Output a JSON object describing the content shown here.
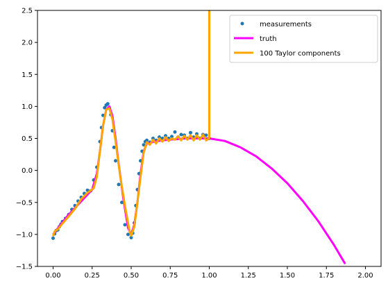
{
  "chart_data": {
    "type": "scatter",
    "title": "",
    "xlabel": "",
    "ylabel": "",
    "xlim": [
      -0.1,
      2.1
    ],
    "ylim": [
      -1.5,
      2.5
    ],
    "xticks": [
      "0.00",
      "0.25",
      "0.50",
      "0.75",
      "1.00",
      "1.25",
      "1.50",
      "1.75",
      "2.00"
    ],
    "yticks": [
      "−1.5",
      "−1.0",
      "−0.5",
      "0.0",
      "0.5",
      "1.0",
      "1.5",
      "2.0",
      "2.5"
    ],
    "grid": false,
    "legend_position": "upper right",
    "legend": [
      {
        "label": "measurements",
        "marker": "dot",
        "color": "#1f77b4"
      },
      {
        "label": "truth",
        "marker": "line",
        "color": "#ff00ff"
      },
      {
        "label": "100 Taylor components",
        "marker": "line",
        "color": "#ffa500"
      }
    ],
    "series": [
      {
        "name": "measurements",
        "kind": "scatter",
        "color": "#1f77b4",
        "x": [
          0.0,
          0.01,
          0.02,
          0.03,
          0.04,
          0.05,
          0.06,
          0.08,
          0.1,
          0.12,
          0.14,
          0.16,
          0.18,
          0.2,
          0.22,
          0.24,
          0.26,
          0.28,
          0.3,
          0.31,
          0.32,
          0.33,
          0.34,
          0.35,
          0.36,
          0.37,
          0.38,
          0.39,
          0.4,
          0.42,
          0.44,
          0.46,
          0.48,
          0.5,
          0.51,
          0.52,
          0.53,
          0.54,
          0.55,
          0.56,
          0.57,
          0.58,
          0.59,
          0.6,
          0.62,
          0.64,
          0.66,
          0.68,
          0.7,
          0.72,
          0.74,
          0.76,
          0.78,
          0.8,
          0.82,
          0.84,
          0.86,
          0.88,
          0.9,
          0.92,
          0.94,
          0.96,
          0.98,
          1.0
        ],
        "y": [
          -1.06,
          -0.99,
          -0.94,
          -0.93,
          -0.88,
          -0.84,
          -0.8,
          -0.75,
          -0.69,
          -0.61,
          -0.55,
          -0.48,
          -0.42,
          -0.36,
          -0.31,
          -0.32,
          -0.15,
          0.05,
          0.45,
          0.67,
          0.86,
          0.98,
          1.02,
          1.04,
          0.98,
          0.87,
          0.62,
          0.36,
          0.15,
          -0.22,
          -0.5,
          -0.85,
          -1.0,
          -1.05,
          -0.98,
          -0.82,
          -0.55,
          -0.3,
          -0.05,
          0.15,
          0.3,
          0.4,
          0.45,
          0.47,
          0.44,
          0.5,
          0.47,
          0.52,
          0.5,
          0.54,
          0.5,
          0.53,
          0.6,
          0.52,
          0.56,
          0.55,
          0.5,
          0.59,
          0.52,
          0.57,
          0.5,
          0.56,
          0.55,
          0.5
        ]
      },
      {
        "name": "truth",
        "kind": "line",
        "color": "#ff00ff",
        "x": [
          0.0,
          0.05,
          0.1,
          0.15,
          0.2,
          0.25,
          0.28,
          0.3,
          0.32,
          0.34,
          0.36,
          0.38,
          0.4,
          0.42,
          0.45,
          0.48,
          0.5,
          0.52,
          0.54,
          0.56,
          0.58,
          0.6,
          0.65,
          0.7,
          0.75,
          0.8,
          0.85,
          0.9,
          0.95,
          1.0,
          1.1,
          1.2,
          1.3,
          1.4,
          1.5,
          1.6,
          1.7,
          1.8,
          1.87
        ],
        "y": [
          -1.0,
          -0.84,
          -0.69,
          -0.56,
          -0.43,
          -0.3,
          -0.05,
          0.3,
          0.7,
          0.95,
          1.0,
          0.85,
          0.5,
          0.1,
          -0.45,
          -0.9,
          -1.0,
          -0.85,
          -0.5,
          -0.05,
          0.3,
          0.42,
          0.45,
          0.47,
          0.48,
          0.49,
          0.5,
          0.5,
          0.5,
          0.5,
          0.46,
          0.36,
          0.22,
          0.03,
          -0.2,
          -0.48,
          -0.8,
          -1.17,
          -1.46
        ]
      },
      {
        "name": "100 Taylor components",
        "kind": "line",
        "color": "#ffa500",
        "x": [
          0.0,
          0.01,
          0.03,
          0.06,
          0.1,
          0.14,
          0.18,
          0.22,
          0.26,
          0.28,
          0.3,
          0.32,
          0.34,
          0.36,
          0.38,
          0.4,
          0.43,
          0.46,
          0.49,
          0.5,
          0.52,
          0.54,
          0.56,
          0.58,
          0.6,
          0.62,
          0.64,
          0.66,
          0.68,
          0.7,
          0.72,
          0.74,
          0.76,
          0.78,
          0.8,
          0.82,
          0.84,
          0.86,
          0.88,
          0.9,
          0.92,
          0.94,
          0.96,
          0.98,
          1.0,
          1.0
        ],
        "y": [
          -1.03,
          -0.95,
          -0.92,
          -0.83,
          -0.72,
          -0.6,
          -0.45,
          -0.35,
          -0.28,
          -0.1,
          0.3,
          0.7,
          0.95,
          0.97,
          0.8,
          0.45,
          -0.1,
          -0.55,
          -0.95,
          -1.02,
          -0.88,
          -0.5,
          -0.1,
          0.28,
          0.44,
          0.4,
          0.48,
          0.42,
          0.5,
          0.45,
          0.52,
          0.46,
          0.5,
          0.48,
          0.53,
          0.47,
          0.54,
          0.48,
          0.55,
          0.47,
          0.55,
          0.48,
          0.56,
          0.47,
          0.5,
          2.5
        ]
      }
    ]
  }
}
